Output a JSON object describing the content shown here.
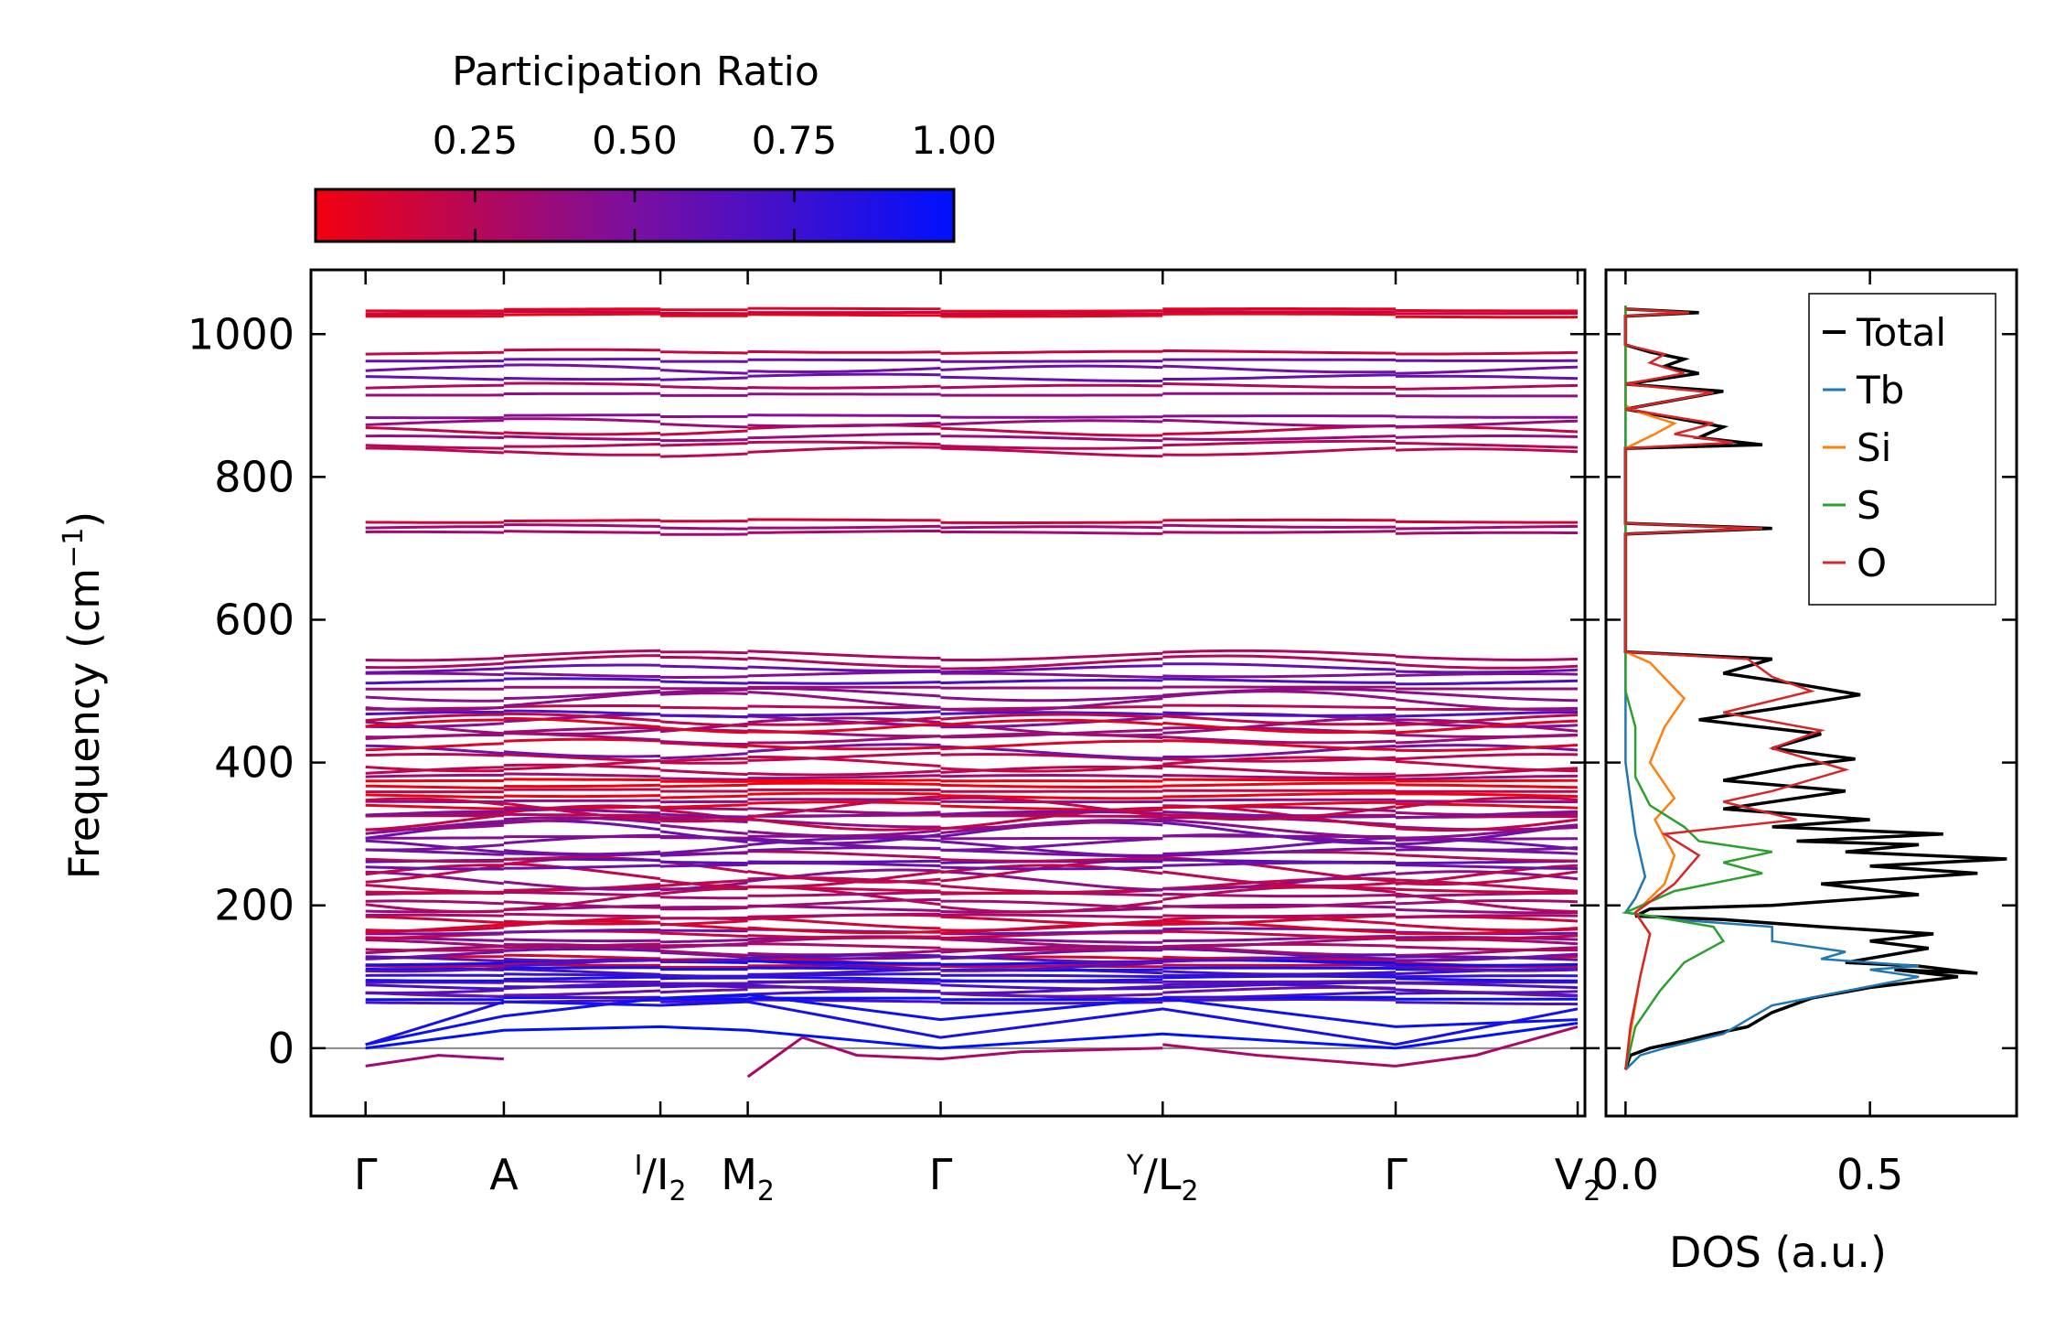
{
  "chart_data": [
    {
      "type": "line",
      "subtype": "phonon-band-structure",
      "ylabel": "Frequency (cm",
      "ylabel_sup": "−1",
      "ylabel_tail": ")",
      "ylim": [
        -95,
        1090
      ],
      "yticks": [
        0,
        200,
        400,
        600,
        800,
        1000
      ],
      "ytick_labels": [
        "0",
        "200",
        "400",
        "600",
        "800",
        "1000"
      ],
      "xlim": [
        0,
        3.5
      ],
      "kpath": [
        {
          "name": "gamma1",
          "pos": 0.15,
          "label": "Γ"
        },
        {
          "name": "A",
          "pos": 0.53,
          "label": "A"
        },
        {
          "name": "I2I",
          "pos": 0.96,
          "label_sup": "I",
          "label_sub": "2",
          "label_tail": "/I"
        },
        {
          "name": "M2",
          "pos": 1.2,
          "label": "M",
          "label_sub": "2"
        },
        {
          "name": "gamma2",
          "pos": 1.73,
          "label": "Γ"
        },
        {
          "name": "YL2",
          "pos": 2.34,
          "label_sup": "Y",
          "label_tail": "/L",
          "label_sub": "2"
        },
        {
          "name": "gamma3",
          "pos": 2.98,
          "label": "Γ"
        },
        {
          "name": "V2",
          "pos": 3.48,
          "label": "V",
          "label_sub": "2"
        }
      ],
      "zero_line": 0,
      "colorbar": {
        "title": "Participation Ratio",
        "ticks": [
          0.25,
          0.5,
          0.75,
          1.0
        ],
        "tick_labels": [
          "0.25",
          "0.50",
          "0.75",
          "1.00"
        ],
        "range": [
          0.0,
          1.0
        ],
        "colors": [
          "#f20010",
          "#7a0fa0",
          "#0010ff"
        ]
      },
      "acoustic_branches": [
        {
          "name": "optical-low-1",
          "points": [
            [
              0.15,
              5
            ],
            [
              0.53,
              45
            ],
            [
              0.96,
              70
            ],
            [
              1.2,
              75
            ],
            [
              1.73,
              40
            ],
            [
              2.34,
              70
            ],
            [
              2.98,
              30
            ],
            [
              3.48,
              40
            ]
          ],
          "pr": 0.95
        },
        {
          "name": "optical-low-2",
          "points": [
            [
              0.15,
              5
            ],
            [
              0.53,
              65
            ],
            [
              0.96,
              60
            ],
            [
              1.2,
              65
            ],
            [
              1.73,
              15
            ],
            [
              2.34,
              55
            ],
            [
              2.98,
              5
            ],
            [
              3.48,
              55
            ]
          ],
          "pr": 0.9
        },
        {
          "name": "acoustic-1",
          "points": [
            [
              0.15,
              0
            ],
            [
              0.53,
              25
            ],
            [
              0.96,
              30
            ],
            [
              1.2,
              25
            ],
            [
              1.73,
              0
            ],
            [
              2.34,
              20
            ],
            [
              2.98,
              0
            ],
            [
              3.48,
              35
            ]
          ],
          "pr": 1.0
        },
        {
          "name": "imag-1",
          "points": [
            [
              0.15,
              -25
            ],
            [
              0.35,
              -10
            ],
            [
              0.53,
              -15
            ]
          ],
          "pr": 0.35
        },
        {
          "name": "imag-2",
          "points": [
            [
              1.2,
              -40
            ],
            [
              1.35,
              15
            ],
            [
              1.5,
              -10
            ],
            [
              1.73,
              -15
            ],
            [
              1.95,
              -5
            ],
            [
              2.34,
              0
            ]
          ],
          "pr": 0.3
        },
        {
          "name": "imag-3",
          "points": [
            [
              2.34,
              5
            ],
            [
              2.6,
              -10
            ],
            [
              2.98,
              -25
            ],
            [
              3.2,
              -10
            ],
            [
              3.48,
              30
            ]
          ],
          "pr": 0.3
        }
      ],
      "band_groups": [
        {
          "name": "high-1030",
          "center": 1030,
          "count": 3,
          "spread": 4,
          "pr": 0.05
        },
        {
          "name": "high-950",
          "center": 945,
          "count": 6,
          "spread": 30,
          "pr": 0.35
        },
        {
          "name": "high-860",
          "center": 860,
          "count": 6,
          "spread": 25,
          "pr": 0.3
        },
        {
          "name": "mid-730",
          "center": 730,
          "count": 3,
          "spread": 8,
          "pr": 0.35
        },
        {
          "name": "mid-500",
          "center": 500,
          "count": 12,
          "spread": 50,
          "pr": 0.45
        },
        {
          "name": "mid-420",
          "center": 420,
          "count": 10,
          "spread": 40,
          "pr": 0.3
        },
        {
          "name": "mid-350",
          "center": 350,
          "count": 8,
          "spread": 25,
          "pr": 0.2
        },
        {
          "name": "low-260",
          "center": 265,
          "count": 22,
          "spread": 70,
          "pr": 0.4
        },
        {
          "name": "low-150",
          "center": 150,
          "count": 14,
          "spread": 35,
          "pr": 0.3
        },
        {
          "name": "low-90",
          "center": 95,
          "count": 14,
          "spread": 30,
          "pr": 0.75
        }
      ]
    },
    {
      "type": "line",
      "subtype": "density-of-states",
      "xlabel": "DOS (a.u.)",
      "xlim": [
        -0.04,
        0.8
      ],
      "xticks": [
        0.0,
        0.5
      ],
      "xtick_labels": [
        "0.0",
        "0.5"
      ],
      "ylim": [
        -95,
        1090
      ],
      "legend_position": "top-right",
      "series": [
        {
          "name": "Total",
          "color": "#000000",
          "points": [
            [
              0.0,
              -30
            ],
            [
              0.01,
              -10
            ],
            [
              0.05,
              0
            ],
            [
              0.12,
              10
            ],
            [
              0.18,
              20
            ],
            [
              0.25,
              30
            ],
            [
              0.3,
              50
            ],
            [
              0.38,
              70
            ],
            [
              0.5,
              85
            ],
            [
              0.68,
              100
            ],
            [
              0.55,
              110
            ],
            [
              0.72,
              105
            ],
            [
              0.6,
              115
            ],
            [
              0.45,
              120
            ],
            [
              0.62,
              140
            ],
            [
              0.5,
              150
            ],
            [
              0.63,
              160
            ],
            [
              0.4,
              170
            ],
            [
              0.2,
              180
            ],
            [
              0.02,
              185
            ],
            [
              0.05,
              195
            ],
            [
              0.3,
              200
            ],
            [
              0.6,
              215
            ],
            [
              0.4,
              230
            ],
            [
              0.72,
              245
            ],
            [
              0.5,
              255
            ],
            [
              0.78,
              265
            ],
            [
              0.45,
              275
            ],
            [
              0.6,
              285
            ],
            [
              0.35,
              290
            ],
            [
              0.65,
              300
            ],
            [
              0.3,
              310
            ],
            [
              0.5,
              320
            ],
            [
              0.2,
              335
            ],
            [
              0.45,
              360
            ],
            [
              0.2,
              375
            ],
            [
              0.35,
              395
            ],
            [
              0.47,
              405
            ],
            [
              0.3,
              420
            ],
            [
              0.4,
              440
            ],
            [
              0.15,
              460
            ],
            [
              0.3,
              475
            ],
            [
              0.48,
              495
            ],
            [
              0.35,
              510
            ],
            [
              0.2,
              525
            ],
            [
              0.3,
              545
            ],
            [
              0.0,
              555
            ],
            [
              0.0,
              720
            ],
            [
              0.3,
              728
            ],
            [
              0.0,
              735
            ],
            [
              0.0,
              840
            ],
            [
              0.28,
              845
            ],
            [
              0.15,
              855
            ],
            [
              0.2,
              870
            ],
            [
              0.08,
              885
            ],
            [
              0.0,
              895
            ],
            [
              0.2,
              920
            ],
            [
              0.0,
              930
            ],
            [
              0.15,
              945
            ],
            [
              0.08,
              955
            ],
            [
              0.12,
              965
            ],
            [
              0.05,
              975
            ],
            [
              0.0,
              985
            ],
            [
              0.0,
              1025
            ],
            [
              0.15,
              1030
            ],
            [
              0.0,
              1035
            ]
          ]
        },
        {
          "name": "Tb",
          "color": "#1f77b4",
          "points": [
            [
              0.0,
              -30
            ],
            [
              0.03,
              -10
            ],
            [
              0.08,
              0
            ],
            [
              0.14,
              10
            ],
            [
              0.2,
              20
            ],
            [
              0.25,
              40
            ],
            [
              0.3,
              60
            ],
            [
              0.45,
              80
            ],
            [
              0.6,
              100
            ],
            [
              0.5,
              110
            ],
            [
              0.6,
              115
            ],
            [
              0.4,
              125
            ],
            [
              0.45,
              135
            ],
            [
              0.3,
              150
            ],
            [
              0.3,
              170
            ],
            [
              0.1,
              180
            ],
            [
              0.0,
              190
            ],
            [
              0.02,
              210
            ],
            [
              0.04,
              240
            ],
            [
              0.02,
              300
            ],
            [
              0.01,
              350
            ],
            [
              0.0,
              400
            ],
            [
              0.0,
              1040
            ]
          ]
        },
        {
          "name": "Si",
          "color": "#ff7f0e",
          "points": [
            [
              0.0,
              -30
            ],
            [
              0.01,
              20
            ],
            [
              0.03,
              100
            ],
            [
              0.05,
              160
            ],
            [
              0.02,
              190
            ],
            [
              0.08,
              230
            ],
            [
              0.1,
              270
            ],
            [
              0.06,
              320
            ],
            [
              0.1,
              350
            ],
            [
              0.05,
              400
            ],
            [
              0.08,
              450
            ],
            [
              0.12,
              490
            ],
            [
              0.05,
              540
            ],
            [
              0.0,
              555
            ],
            [
              0.0,
              840
            ],
            [
              0.06,
              860
            ],
            [
              0.1,
              875
            ],
            [
              0.03,
              890
            ],
            [
              0.0,
              900
            ],
            [
              0.0,
              1040
            ]
          ]
        },
        {
          "name": "S",
          "color": "#2ca02c",
          "points": [
            [
              0.0,
              -30
            ],
            [
              0.02,
              30
            ],
            [
              0.07,
              80
            ],
            [
              0.12,
              120
            ],
            [
              0.2,
              150
            ],
            [
              0.18,
              170
            ],
            [
              0.05,
              185
            ],
            [
              0.0,
              190
            ],
            [
              0.1,
              220
            ],
            [
              0.28,
              245
            ],
            [
              0.2,
              260
            ],
            [
              0.3,
              275
            ],
            [
              0.15,
              290
            ],
            [
              0.12,
              310
            ],
            [
              0.05,
              340
            ],
            [
              0.02,
              380
            ],
            [
              0.02,
              450
            ],
            [
              0.0,
              500
            ],
            [
              0.0,
              1040
            ]
          ]
        },
        {
          "name": "O",
          "color": "#d62728",
          "points": [
            [
              0.0,
              -30
            ],
            [
              0.01,
              30
            ],
            [
              0.03,
              100
            ],
            [
              0.05,
              160
            ],
            [
              0.02,
              190
            ],
            [
              0.1,
              230
            ],
            [
              0.15,
              270
            ],
            [
              0.08,
              300
            ],
            [
              0.35,
              320
            ],
            [
              0.2,
              345
            ],
            [
              0.3,
              360
            ],
            [
              0.45,
              390
            ],
            [
              0.3,
              420
            ],
            [
              0.4,
              445
            ],
            [
              0.2,
              470
            ],
            [
              0.38,
              500
            ],
            [
              0.3,
              520
            ],
            [
              0.25,
              545
            ],
            [
              0.0,
              555
            ],
            [
              0.0,
              720
            ],
            [
              0.28,
              728
            ],
            [
              0.0,
              735
            ],
            [
              0.0,
              840
            ],
            [
              0.22,
              848
            ],
            [
              0.1,
              860
            ],
            [
              0.18,
              875
            ],
            [
              0.0,
              895
            ],
            [
              0.18,
              918
            ],
            [
              0.0,
              930
            ],
            [
              0.12,
              945
            ],
            [
              0.05,
              960
            ],
            [
              0.08,
              972
            ],
            [
              0.0,
              985
            ],
            [
              0.0,
              1025
            ],
            [
              0.13,
              1030
            ],
            [
              0.0,
              1035
            ]
          ]
        }
      ]
    }
  ]
}
